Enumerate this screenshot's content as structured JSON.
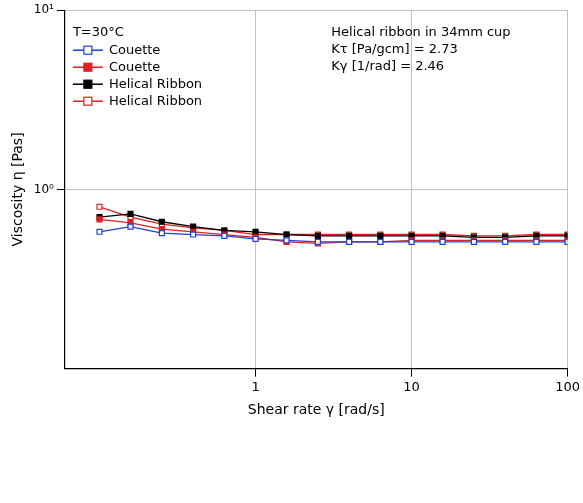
{
  "chart_data": {
    "type": "line",
    "title": "T=30°C",
    "annotations": [
      "Helical ribbon in 34mm cup",
      "Kτ [Pa/gcm] = 2.73",
      "Kγ [1/rad] = 2.46"
    ],
    "x_label": "Shear rate γ [rad/s]",
    "y_label": "Viscosity η [Pas]",
    "x": [
      0.1,
      0.158,
      0.251,
      0.398,
      0.631,
      1,
      1.58,
      2.51,
      3.98,
      6.31,
      10,
      15.8,
      25.1,
      39.8,
      63.1,
      100
    ],
    "series": [
      {
        "name": "Couette",
        "color": "#1f3fd6",
        "marker": "square-open",
        "values": [
          0.58,
          0.62,
          0.57,
          0.56,
          0.55,
          0.53,
          0.52,
          0.51,
          0.51,
          0.51,
          0.51,
          0.51,
          0.51,
          0.51,
          0.51,
          0.51
        ]
      },
      {
        "name": "Couette",
        "color": "#e02020",
        "marker": "square-filled",
        "values": [
          0.68,
          0.65,
          0.6,
          0.58,
          0.56,
          0.54,
          0.51,
          0.5,
          0.51,
          0.51,
          0.52,
          0.52,
          0.52,
          0.52,
          0.52,
          0.52
        ]
      },
      {
        "name": "Helical Ribbon",
        "color": "#000000",
        "marker": "square-filled",
        "values": [
          0.7,
          0.73,
          0.66,
          0.62,
          0.59,
          0.58,
          0.56,
          0.55,
          0.55,
          0.55,
          0.55,
          0.55,
          0.54,
          0.54,
          0.55,
          0.55
        ]
      },
      {
        "name": "Helical Ribbon",
        "color": "#e02020",
        "marker": "square-open",
        "values": [
          0.8,
          0.7,
          0.64,
          0.61,
          0.59,
          0.56,
          0.56,
          0.56,
          0.56,
          0.56,
          0.56,
          0.56,
          0.55,
          0.55,
          0.56,
          0.56
        ]
      }
    ],
    "xlim": [
      0.06,
      100
    ],
    "ylim": [
      0.1,
      10
    ],
    "xticks": [
      1,
      10,
      100
    ],
    "yticks": [
      {
        "value": 1,
        "label": "10⁰"
      },
      {
        "value": 10,
        "label": "10¹"
      }
    ],
    "log": true,
    "grid": true,
    "legend": "upper left"
  }
}
